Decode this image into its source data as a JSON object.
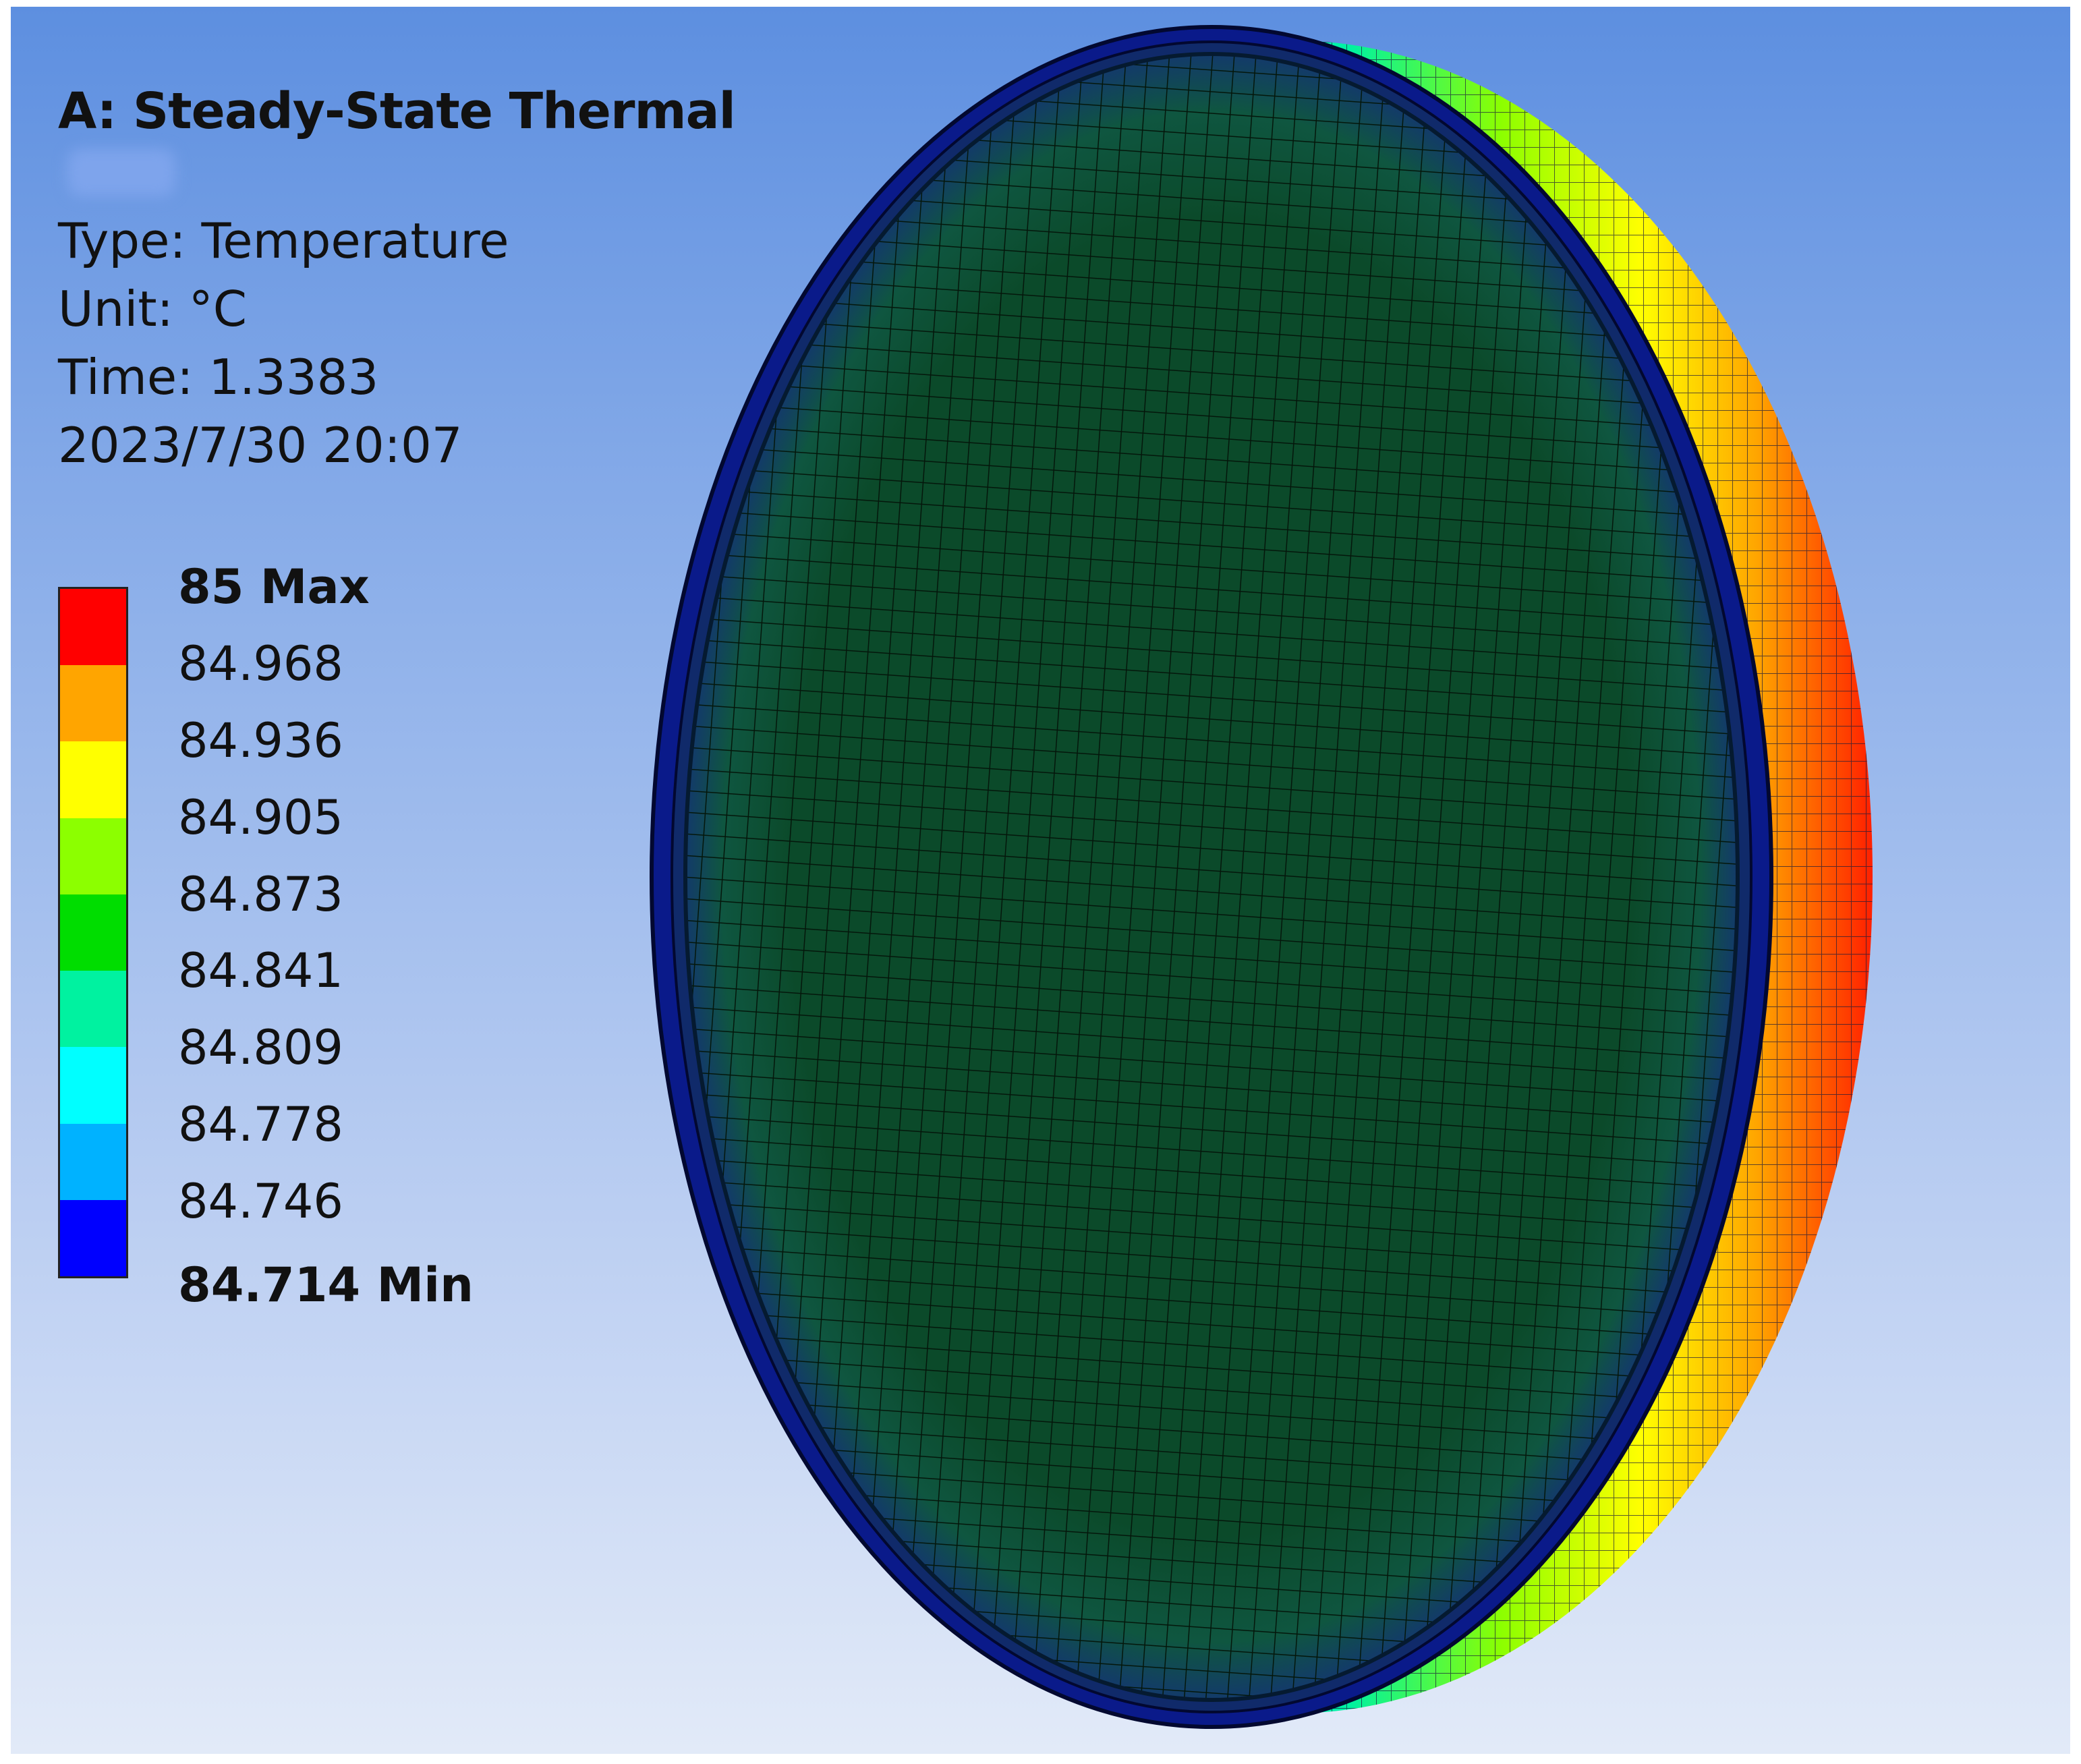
{
  "result": {
    "title": "A: Steady-State Thermal",
    "type_line": "Type: Temperature",
    "unit_line": "Unit: °C",
    "time_line": "Time: 1.3383",
    "date_line": "2023/7/30 20:07"
  },
  "legend": {
    "labels": [
      {
        "text": "85 Max",
        "bold": true
      },
      {
        "text": "84.968",
        "bold": false
      },
      {
        "text": "84.936",
        "bold": false
      },
      {
        "text": "84.905",
        "bold": false
      },
      {
        "text": "84.873",
        "bold": false
      },
      {
        "text": "84.841",
        "bold": false
      },
      {
        "text": "84.809",
        "bold": false
      },
      {
        "text": "84.778",
        "bold": false
      },
      {
        "text": "84.746",
        "bold": false
      },
      {
        "text": "84.714 Min",
        "bold": true
      }
    ],
    "band_colors": [
      "#ff0000",
      "#ffa500",
      "#ffff00",
      "#8cff00",
      "#00dd00",
      "#00f2a0",
      "#00ffff",
      "#00b2ff",
      "#0000ff"
    ]
  },
  "colors": {
    "face_fill": "#0c4a28",
    "mesh_line": "#041a0c",
    "rim_dark": "#0a1a7a"
  }
}
